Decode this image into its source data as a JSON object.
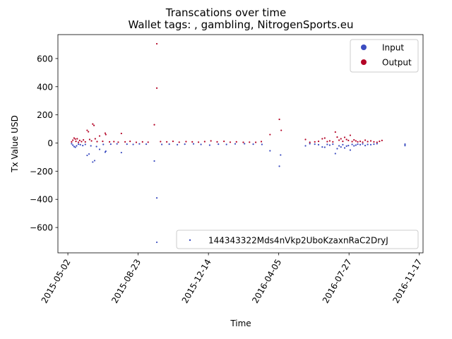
{
  "chart_data": {
    "type": "scatter",
    "title": "Transcations over time",
    "subtitle": "Wallet tags: , gambling, NitrogenSports.eu",
    "xlabel": "Time",
    "ylabel": "Tx Value USD",
    "x_ticks": [
      "2015-05-02",
      "2015-08-23",
      "2015-12-14",
      "2016-04-05",
      "2016-07-27",
      "2016-11-17"
    ],
    "x_range": [
      "2015-04-16",
      "2016-11-23"
    ],
    "y_ticks": [
      -600,
      -400,
      -200,
      0,
      200,
      400,
      600
    ],
    "ylim": [
      -780,
      770
    ],
    "legend": {
      "placement_top": "top-right",
      "placement_bottom": "bottom-right",
      "entries": [
        {
          "label": "Input",
          "color": "#3b4cc0"
        },
        {
          "label": "Output",
          "color": "#b40426"
        }
      ],
      "wallet_label": "144343322Mds4nVkp2UboKzaxnRaC2DryJ"
    },
    "colors": {
      "input": "#3b4cc0",
      "output": "#b40426",
      "wallet": "#3b4cc0"
    },
    "series": [
      {
        "name": "Output",
        "points": [
          [
            "2015-05-08",
            8
          ],
          [
            "2015-05-10",
            20
          ],
          [
            "2015-05-12",
            35
          ],
          [
            "2015-05-14",
            28
          ],
          [
            "2015-05-15",
            12
          ],
          [
            "2015-05-17",
            30
          ],
          [
            "2015-05-19",
            5
          ],
          [
            "2015-05-21",
            18
          ],
          [
            "2015-05-24",
            10
          ],
          [
            "2015-05-27",
            22
          ],
          [
            "2015-05-30",
            8
          ],
          [
            "2015-06-02",
            90
          ],
          [
            "2015-06-04",
            80
          ],
          [
            "2015-06-06",
            25
          ],
          [
            "2015-06-09",
            15
          ],
          [
            "2015-06-11",
            135
          ],
          [
            "2015-06-13",
            125
          ],
          [
            "2015-06-15",
            30
          ],
          [
            "2015-06-18",
            10
          ],
          [
            "2015-06-22",
            50
          ],
          [
            "2015-06-27",
            12
          ],
          [
            "2015-07-01",
            70
          ],
          [
            "2015-07-02",
            60
          ],
          [
            "2015-07-08",
            8
          ],
          [
            "2015-07-15",
            10
          ],
          [
            "2015-07-22",
            6
          ],
          [
            "2015-07-27",
            68
          ],
          [
            "2015-08-02",
            8
          ],
          [
            "2015-08-10",
            12
          ],
          [
            "2015-08-20",
            5
          ],
          [
            "2015-08-30",
            8
          ],
          [
            "2015-09-08",
            6
          ],
          [
            "2015-09-18",
            130
          ],
          [
            "2015-09-22",
            705
          ],
          [
            "2015-09-22",
            390
          ],
          [
            "2015-09-28",
            10
          ],
          [
            "2015-10-08",
            8
          ],
          [
            "2015-10-18",
            12
          ],
          [
            "2015-10-28",
            6
          ],
          [
            "2015-11-08",
            10
          ],
          [
            "2015-11-18",
            8
          ],
          [
            "2015-11-28",
            6
          ],
          [
            "2015-12-08",
            10
          ],
          [
            "2015-12-18",
            15
          ],
          [
            "2015-12-28",
            8
          ],
          [
            "2016-01-08",
            12
          ],
          [
            "2016-01-18",
            6
          ],
          [
            "2016-01-28",
            8
          ],
          [
            "2016-02-08",
            5
          ],
          [
            "2016-02-18",
            6
          ],
          [
            "2016-02-28",
            5
          ],
          [
            "2016-03-08",
            10
          ],
          [
            "2016-03-22",
            60
          ],
          [
            "2016-04-06",
            168
          ],
          [
            "2016-04-09",
            90
          ],
          [
            "2016-05-18",
            25
          ],
          [
            "2016-05-25",
            5
          ],
          [
            "2016-06-02",
            8
          ],
          [
            "2016-06-08",
            12
          ],
          [
            "2016-06-14",
            30
          ],
          [
            "2016-06-18",
            35
          ],
          [
            "2016-06-22",
            10
          ],
          [
            "2016-06-26",
            15
          ],
          [
            "2016-07-01",
            8
          ],
          [
            "2016-07-05",
            78
          ],
          [
            "2016-07-08",
            42
          ],
          [
            "2016-07-11",
            20
          ],
          [
            "2016-07-14",
            30
          ],
          [
            "2016-07-17",
            12
          ],
          [
            "2016-07-20",
            40
          ],
          [
            "2016-07-23",
            25
          ],
          [
            "2016-07-26",
            18
          ],
          [
            "2016-07-29",
            55
          ],
          [
            "2016-08-01",
            10
          ],
          [
            "2016-08-04",
            22
          ],
          [
            "2016-08-07",
            15
          ],
          [
            "2016-08-10",
            8
          ],
          [
            "2016-08-14",
            12
          ],
          [
            "2016-08-18",
            6
          ],
          [
            "2016-08-22",
            20
          ],
          [
            "2016-08-26",
            10
          ],
          [
            "2016-08-31",
            15
          ],
          [
            "2016-09-05",
            8
          ],
          [
            "2016-09-10",
            5
          ],
          [
            "2016-09-14",
            12
          ],
          [
            "2016-09-18",
            18
          ]
        ]
      },
      {
        "name": "Input",
        "points": [
          [
            "2015-05-08",
            -5
          ],
          [
            "2015-05-10",
            -15
          ],
          [
            "2015-05-12",
            -25
          ],
          [
            "2015-05-14",
            -30
          ],
          [
            "2015-05-16",
            -20
          ],
          [
            "2015-05-19",
            -8
          ],
          [
            "2015-05-22",
            -12
          ],
          [
            "2015-05-26",
            -18
          ],
          [
            "2015-05-30",
            -10
          ],
          [
            "2015-06-02",
            -88
          ],
          [
            "2015-06-05",
            -78
          ],
          [
            "2015-06-08",
            -20
          ],
          [
            "2015-06-11",
            -135
          ],
          [
            "2015-06-14",
            -125
          ],
          [
            "2015-06-17",
            -25
          ],
          [
            "2015-06-22",
            -45
          ],
          [
            "2015-06-28",
            -10
          ],
          [
            "2015-07-01",
            -65
          ],
          [
            "2015-07-02",
            -58
          ],
          [
            "2015-07-10",
            -8
          ],
          [
            "2015-07-20",
            -6
          ],
          [
            "2015-07-27",
            -68
          ],
          [
            "2015-08-05",
            -8
          ],
          [
            "2015-08-15",
            -10
          ],
          [
            "2015-08-25",
            -6
          ],
          [
            "2015-09-05",
            -8
          ],
          [
            "2015-09-18",
            -128
          ],
          [
            "2015-09-22",
            -390
          ],
          [
            "2015-09-22",
            -705
          ],
          [
            "2015-09-30",
            -10
          ],
          [
            "2015-10-12",
            -8
          ],
          [
            "2015-10-25",
            -12
          ],
          [
            "2015-11-06",
            -8
          ],
          [
            "2015-11-20",
            -6
          ],
          [
            "2015-12-02",
            -10
          ],
          [
            "2015-12-16",
            -15
          ],
          [
            "2015-12-30",
            -8
          ],
          [
            "2016-01-12",
            -10
          ],
          [
            "2016-01-26",
            -6
          ],
          [
            "2016-02-10",
            -5
          ],
          [
            "2016-02-24",
            -8
          ],
          [
            "2016-03-09",
            -10
          ],
          [
            "2016-03-22",
            -55
          ],
          [
            "2016-04-06",
            -165
          ],
          [
            "2016-04-08",
            -85
          ],
          [
            "2016-05-18",
            -20
          ],
          [
            "2016-05-25",
            -5
          ],
          [
            "2016-06-02",
            -8
          ],
          [
            "2016-06-08",
            -12
          ],
          [
            "2016-06-14",
            -28
          ],
          [
            "2016-06-18",
            -30
          ],
          [
            "2016-06-22",
            -10
          ],
          [
            "2016-06-26",
            -15
          ],
          [
            "2016-07-01",
            -8
          ],
          [
            "2016-07-05",
            -75
          ],
          [
            "2016-07-08",
            -40
          ],
          [
            "2016-07-11",
            -20
          ],
          [
            "2016-07-14",
            -28
          ],
          [
            "2016-07-17",
            -12
          ],
          [
            "2016-07-20",
            -35
          ],
          [
            "2016-07-23",
            -22
          ],
          [
            "2016-07-26",
            -18
          ],
          [
            "2016-07-29",
            -50
          ],
          [
            "2016-08-01",
            -10
          ],
          [
            "2016-08-04",
            -20
          ],
          [
            "2016-08-07",
            -15
          ],
          [
            "2016-08-10",
            -8
          ],
          [
            "2016-08-14",
            -12
          ],
          [
            "2016-08-18",
            -6
          ],
          [
            "2016-08-22",
            -18
          ],
          [
            "2016-08-26",
            -10
          ],
          [
            "2016-08-31",
            -12
          ],
          [
            "2016-09-05",
            -8
          ],
          [
            "2016-09-10",
            -5
          ],
          [
            "2016-10-25",
            -8
          ],
          [
            "2016-10-25",
            -18
          ]
        ]
      }
    ]
  }
}
